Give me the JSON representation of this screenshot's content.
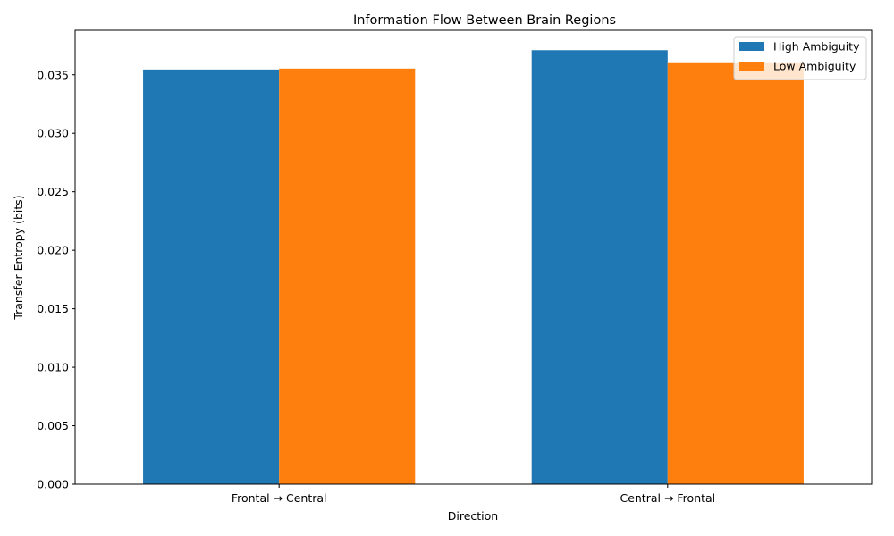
{
  "chart_data": {
    "type": "bar",
    "title": "Information Flow Between Brain Regions",
    "xlabel": "Direction",
    "ylabel": "Transfer Entropy (bits)",
    "categories": [
      "Frontal → Central",
      "Central → Frontal"
    ],
    "series": [
      {
        "name": "High Ambiguity",
        "color": "#1f77b4",
        "values": [
          0.03545,
          0.0371
        ]
      },
      {
        "name": "Low Ambiguity",
        "color": "#ff7f0e",
        "values": [
          0.03553,
          0.03607
        ]
      }
    ],
    "ylim": [
      0,
      0.0388
    ],
    "yticks": [
      0.0,
      0.005,
      0.01,
      0.015,
      0.02,
      0.025,
      0.03,
      0.035
    ],
    "ytick_labels": [
      "0.000",
      "0.005",
      "0.010",
      "0.015",
      "0.020",
      "0.025",
      "0.030",
      "0.035"
    ],
    "legend_position": "top-right",
    "grid": false
  }
}
